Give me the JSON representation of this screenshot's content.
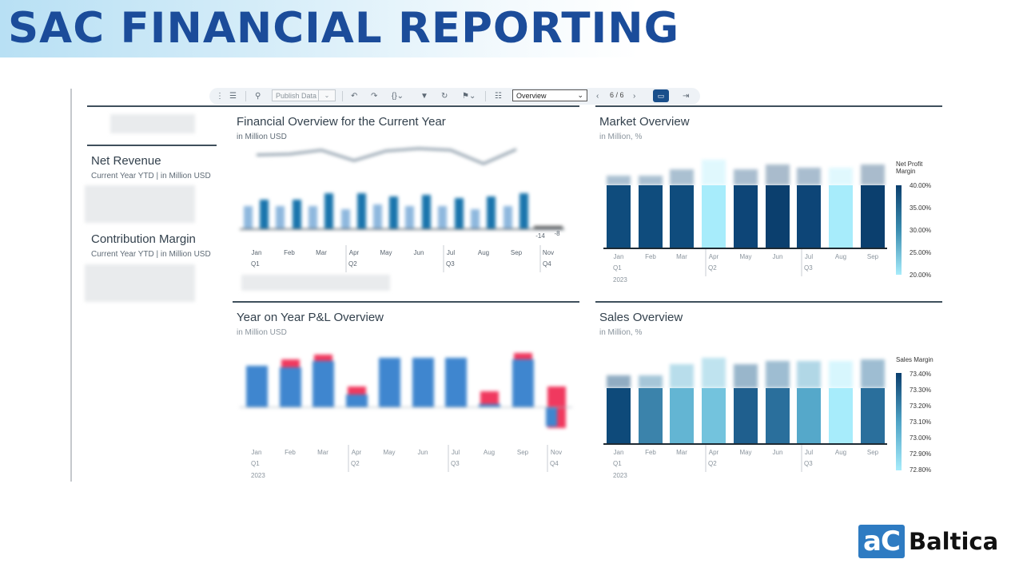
{
  "slide": {
    "title": "SAC FINANCIAL REPORTING"
  },
  "toolbar": {
    "publish_label": "Publish Data",
    "view_value": "Overview",
    "page_indicator": "6 / 6"
  },
  "kpis": [
    {
      "title": "Net Revenue",
      "subtitle": "Current Year YTD | in Million USD"
    },
    {
      "title": "Contribution Margin",
      "subtitle": "Current Year YTD | in Million USD"
    }
  ],
  "cards": {
    "financial": {
      "title": "Financial Overview for the Current Year",
      "subtitle": "in Million USD",
      "months": [
        "Jan",
        "Feb",
        "Mar",
        "Apr",
        "May",
        "Jun",
        "Jul",
        "Aug",
        "Sep",
        "Nov"
      ],
      "quarters": [
        "Q1",
        "Q2",
        "Q3",
        "Q4"
      ],
      "small_labels": [
        "-14",
        "-8"
      ]
    },
    "market": {
      "title": "Market Overview",
      "subtitle": "in Million, %",
      "months": [
        "Jan",
        "Feb",
        "Mar",
        "Apr",
        "May",
        "Jun",
        "Jul",
        "Aug",
        "Sep"
      ],
      "quarters": [
        "Q1",
        "Q2",
        "Q3"
      ],
      "year": "2023",
      "legend_title": "Net Profit Margin",
      "legend_ticks": [
        "40.00%",
        "35.00%",
        "30.00%",
        "25.00%",
        "20.00%"
      ]
    },
    "pl": {
      "title": "Year on Year P&L Overview",
      "subtitle": "in Million USD",
      "months": [
        "Jan",
        "Feb",
        "Mar",
        "Apr",
        "May",
        "Jun",
        "Jul",
        "Aug",
        "Sep",
        "Nov"
      ],
      "quarters": [
        "Q1",
        "Q2",
        "Q3",
        "Q4"
      ],
      "year": "2023"
    },
    "sales": {
      "title": "Sales Overview",
      "subtitle": "in Million, %",
      "months": [
        "Jan",
        "Feb",
        "Mar",
        "Apr",
        "May",
        "Jun",
        "Jul",
        "Aug",
        "Sep"
      ],
      "quarters": [
        "Q1",
        "Q2",
        "Q3"
      ],
      "year": "2023",
      "legend_title": "Sales Margin",
      "legend_ticks": [
        "73.40%",
        "73.30%",
        "73.20%",
        "73.10%",
        "73.00%",
        "72.90%",
        "72.80%"
      ]
    }
  },
  "logo": {
    "mark": "aC",
    "text": "Baltica"
  },
  "colors": {
    "title": "#1b4c9a",
    "bar_dark": "#0e4a7a",
    "bar_light": "#a7ecfb",
    "pl_bar": "#3f86cf",
    "pl_negative": "#f0395f"
  }
}
